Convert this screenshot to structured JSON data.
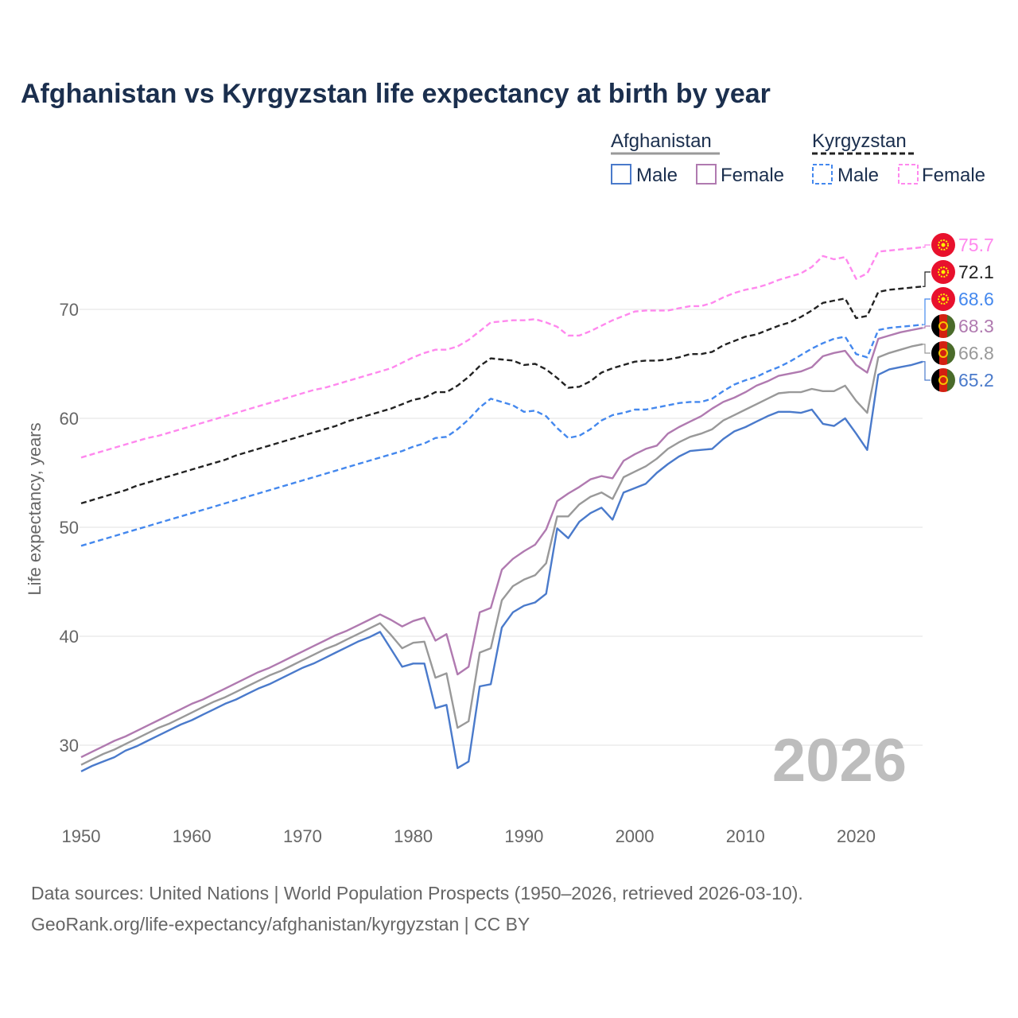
{
  "chart_data": {
    "type": "line",
    "title": "Afghanistan vs Kyrgyzstan life expectancy at birth by year",
    "xlabel": "",
    "ylabel": "Life expectancy, years",
    "xlim": [
      1950,
      2026
    ],
    "ylim": [
      25,
      78
    ],
    "x_ticks": [
      1950,
      1960,
      1970,
      1980,
      1990,
      2000,
      2010,
      2020
    ],
    "y_ticks": [
      30,
      40,
      50,
      60,
      70
    ],
    "grid": true,
    "year_watermark": "2026",
    "x_start": 1950,
    "legend": {
      "placement": "top-right",
      "groups": [
        {
          "country": "Afghanistan",
          "items": [
            "Male",
            "Female"
          ]
        },
        {
          "country": "Kyrgyzstan",
          "items": [
            "Male",
            "Female"
          ]
        }
      ]
    },
    "series": [
      {
        "name": "Kyrgyzstan Female",
        "country": "Kyrgyzstan",
        "color": "#ff88ee",
        "dashed": true,
        "end_label": "75.7",
        "flag": "kyrgyzstan",
        "values": [
          56.4,
          56.7,
          57.0,
          57.3,
          57.6,
          57.9,
          58.2,
          58.4,
          58.7,
          59.0,
          59.3,
          59.6,
          59.9,
          60.2,
          60.5,
          60.8,
          61.1,
          61.4,
          61.7,
          62.0,
          62.3,
          62.6,
          62.8,
          63.1,
          63.4,
          63.7,
          64.0,
          64.3,
          64.6,
          65.1,
          65.6,
          66.0,
          66.3,
          66.3,
          66.6,
          67.2,
          68.0,
          68.8,
          68.9,
          69.0,
          69.0,
          69.1,
          68.8,
          68.4,
          67.6,
          67.6,
          68.0,
          68.5,
          69.0,
          69.4,
          69.8,
          69.9,
          69.9,
          69.9,
          70.1,
          70.3,
          70.3,
          70.6,
          71.1,
          71.5,
          71.8,
          72.0,
          72.3,
          72.7,
          73.0,
          73.3,
          73.9,
          74.9,
          74.6,
          74.8,
          72.8,
          73.3,
          75.3,
          75.4,
          75.5,
          75.6,
          75.7
        ]
      },
      {
        "name": "Kyrgyzstan Total",
        "country": "Kyrgyzstan",
        "color": "#222222",
        "dashed": true,
        "end_label": "72.1",
        "flag": "kyrgyzstan",
        "values": [
          52.2,
          52.5,
          52.8,
          53.1,
          53.4,
          53.8,
          54.1,
          54.4,
          54.7,
          55.0,
          55.3,
          55.6,
          55.9,
          56.2,
          56.6,
          56.9,
          57.2,
          57.5,
          57.8,
          58.1,
          58.4,
          58.7,
          59.0,
          59.3,
          59.7,
          60.0,
          60.3,
          60.6,
          60.9,
          61.3,
          61.7,
          61.9,
          62.4,
          62.4,
          63.0,
          63.8,
          64.8,
          65.5,
          65.4,
          65.3,
          64.9,
          65.0,
          64.5,
          63.7,
          62.8,
          62.9,
          63.4,
          64.2,
          64.6,
          64.9,
          65.2,
          65.3,
          65.3,
          65.4,
          65.6,
          65.9,
          65.9,
          66.1,
          66.7,
          67.1,
          67.5,
          67.7,
          68.1,
          68.5,
          68.8,
          69.3,
          69.9,
          70.6,
          70.8,
          71.0,
          69.2,
          69.4,
          71.6,
          71.8,
          71.9,
          72.0,
          72.1
        ]
      },
      {
        "name": "Kyrgyzstan Male",
        "country": "Kyrgyzstan",
        "color": "#4488ee",
        "dashed": true,
        "end_label": "68.6",
        "flag": "kyrgyzstan",
        "values": [
          48.3,
          48.6,
          48.9,
          49.2,
          49.5,
          49.8,
          50.1,
          50.4,
          50.7,
          51.0,
          51.3,
          51.6,
          51.9,
          52.2,
          52.5,
          52.8,
          53.1,
          53.4,
          53.7,
          54.0,
          54.3,
          54.6,
          54.9,
          55.2,
          55.5,
          55.8,
          56.1,
          56.4,
          56.7,
          57.0,
          57.4,
          57.7,
          58.2,
          58.3,
          59.0,
          59.9,
          61.0,
          61.8,
          61.5,
          61.2,
          60.6,
          60.7,
          60.2,
          59.1,
          58.2,
          58.4,
          59.0,
          59.8,
          60.3,
          60.5,
          60.8,
          60.8,
          61.0,
          61.2,
          61.4,
          61.5,
          61.5,
          61.8,
          62.5,
          63.1,
          63.5,
          63.8,
          64.3,
          64.7,
          65.2,
          65.8,
          66.4,
          66.9,
          67.3,
          67.5,
          65.9,
          65.6,
          68.1,
          68.3,
          68.4,
          68.5,
          68.6
        ]
      },
      {
        "name": "Afghanistan Female",
        "country": "Afghanistan",
        "color": "#b07ab0",
        "dashed": false,
        "end_label": "68.3",
        "flag": "afghanistan",
        "values": [
          28.9,
          29.4,
          29.9,
          30.4,
          30.8,
          31.3,
          31.8,
          32.3,
          32.8,
          33.3,
          33.8,
          34.2,
          34.7,
          35.2,
          35.7,
          36.2,
          36.7,
          37.1,
          37.6,
          38.1,
          38.6,
          39.1,
          39.6,
          40.1,
          40.5,
          41.0,
          41.5,
          42.0,
          41.5,
          40.9,
          41.4,
          41.7,
          39.6,
          40.2,
          36.5,
          37.2,
          42.2,
          42.6,
          46.1,
          47.1,
          47.8,
          48.4,
          49.8,
          52.4,
          53.1,
          53.7,
          54.4,
          54.7,
          54.5,
          56.1,
          56.7,
          57.2,
          57.5,
          58.6,
          59.2,
          59.7,
          60.2,
          60.9,
          61.5,
          61.9,
          62.4,
          63.0,
          63.4,
          63.9,
          64.1,
          64.3,
          64.7,
          65.7,
          66.0,
          66.2,
          64.9,
          64.2,
          67.3,
          67.6,
          67.9,
          68.1,
          68.3
        ]
      },
      {
        "name": "Afghanistan Total",
        "country": "Afghanistan",
        "color": "#999999",
        "dashed": false,
        "end_label": "66.8",
        "flag": "afghanistan",
        "values": [
          28.2,
          28.7,
          29.2,
          29.6,
          30.1,
          30.6,
          31.1,
          31.6,
          32.0,
          32.5,
          33.0,
          33.5,
          34.0,
          34.4,
          34.9,
          35.4,
          35.9,
          36.4,
          36.8,
          37.3,
          37.8,
          38.3,
          38.8,
          39.2,
          39.7,
          40.2,
          40.7,
          41.2,
          40.1,
          38.9,
          39.4,
          39.5,
          36.2,
          36.6,
          31.6,
          32.2,
          38.5,
          38.9,
          43.3,
          44.6,
          45.2,
          45.6,
          46.7,
          51.0,
          51.0,
          52.1,
          52.8,
          53.2,
          52.6,
          54.6,
          55.1,
          55.6,
          56.3,
          57.2,
          57.8,
          58.3,
          58.6,
          59.0,
          59.8,
          60.3,
          60.8,
          61.3,
          61.8,
          62.3,
          62.4,
          62.4,
          62.7,
          62.5,
          62.5,
          63.0,
          61.6,
          60.5,
          65.6,
          66.0,
          66.3,
          66.6,
          66.8
        ]
      },
      {
        "name": "Afghanistan Male",
        "country": "Afghanistan",
        "color": "#4a7acb",
        "dashed": false,
        "end_label": "65.2",
        "flag": "afghanistan",
        "values": [
          27.6,
          28.1,
          28.5,
          28.9,
          29.5,
          29.9,
          30.4,
          30.9,
          31.4,
          31.9,
          32.3,
          32.8,
          33.3,
          33.8,
          34.2,
          34.7,
          35.2,
          35.6,
          36.1,
          36.6,
          37.1,
          37.5,
          38.0,
          38.5,
          39.0,
          39.5,
          39.9,
          40.4,
          38.8,
          37.2,
          37.5,
          37.5,
          33.4,
          33.7,
          27.9,
          28.5,
          35.4,
          35.6,
          40.8,
          42.2,
          42.8,
          43.1,
          43.9,
          49.9,
          49.0,
          50.5,
          51.3,
          51.8,
          50.7,
          53.2,
          53.6,
          54.0,
          55.0,
          55.8,
          56.5,
          57.0,
          57.1,
          57.2,
          58.1,
          58.8,
          59.2,
          59.7,
          60.2,
          60.6,
          60.6,
          60.5,
          60.8,
          59.5,
          59.3,
          60.0,
          58.6,
          57.1,
          64.0,
          64.5,
          64.7,
          64.9,
          65.2
        ]
      }
    ]
  },
  "footer": {
    "line1": "Data sources: United Nations | World Population Prospects (1950–2026, retrieved 2026-03-10).",
    "line2": "GeoRank.org/life-expectancy/afghanistan/kyrgyzstan | CC BY"
  }
}
